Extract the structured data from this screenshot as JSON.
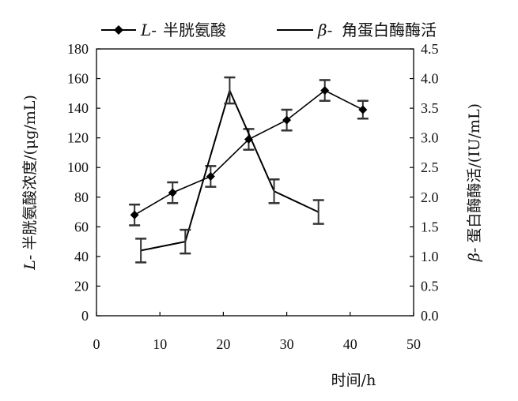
{
  "chart_data": {
    "type": "line",
    "legend": [
      {
        "prefix": "L-",
        "label": "半胱氨酸",
        "marker": "diamond"
      },
      {
        "prefix": "β-",
        "label": "角蛋白酶酶活",
        "marker": "none"
      }
    ],
    "xlabel": "时间/h",
    "ylabel_left": {
      "prefix": "L-",
      "text": "半胱氨酸浓度/(μg/mL)"
    },
    "ylabel_right": {
      "prefix": "β-",
      "text": "蛋白酶酶活/(IU/mL)"
    },
    "xlim": [
      0,
      50
    ],
    "ylim_left": [
      0,
      180
    ],
    "ylim_right": [
      0,
      4.5
    ],
    "x_ticks": [
      "0",
      "10",
      "20",
      "30",
      "40",
      "50"
    ],
    "y_left_ticks": [
      "0",
      "20",
      "40",
      "60",
      "80",
      "100",
      "120",
      "140",
      "160",
      "180"
    ],
    "y_right_ticks": [
      "0.0",
      "0.5",
      "1.0",
      "1.5",
      "2.0",
      "2.5",
      "3.0",
      "3.5",
      "4.0",
      "4.5"
    ],
    "series": [
      {
        "name": "L- 半胱氨酸",
        "axis": "left",
        "x": [
          6,
          12,
          18,
          24,
          30,
          36,
          42
        ],
        "y": [
          68,
          83,
          94,
          119,
          132,
          152,
          139
        ],
        "err": [
          7,
          7,
          7,
          7,
          7,
          7,
          6
        ]
      },
      {
        "name": "β- 角蛋白酶酶活",
        "axis": "right",
        "x": [
          7,
          14,
          21,
          28,
          35
        ],
        "y": [
          1.1,
          1.25,
          3.8,
          2.1,
          1.75
        ],
        "err": [
          0.2,
          0.2,
          0.22,
          0.2,
          0.2
        ]
      }
    ]
  }
}
